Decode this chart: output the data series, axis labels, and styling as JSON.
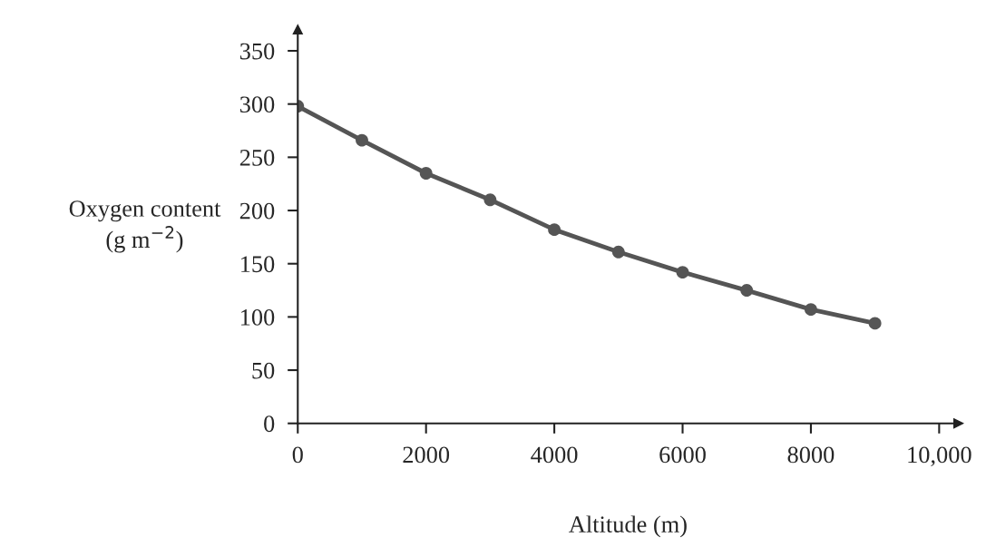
{
  "chart_data": {
    "type": "line",
    "xlabel": "Altitude (m)",
    "ylabel": "Oxygen content\n(g m$^{−2}$)",
    "x": [
      0,
      1000,
      2000,
      3000,
      4000,
      5000,
      6000,
      7000,
      8000,
      9000
    ],
    "series": [
      {
        "color": "#555555",
        "values": [
          298,
          266,
          235,
          210,
          182,
          161,
          142,
          125,
          107,
          94
        ]
      }
    ],
    "xlim": [
      0,
      10300
    ],
    "xticks": [
      0,
      2000,
      4000,
      6000,
      8000,
      {
        "value": 10000,
        "label": "10,000"
      }
    ],
    "ylim": [
      0,
      370
    ],
    "yticks": [
      0,
      50,
      100,
      150,
      200,
      250,
      300,
      350
    ],
    "grid": false,
    "legend": false,
    "marker": "circle",
    "line_style": "solid"
  }
}
